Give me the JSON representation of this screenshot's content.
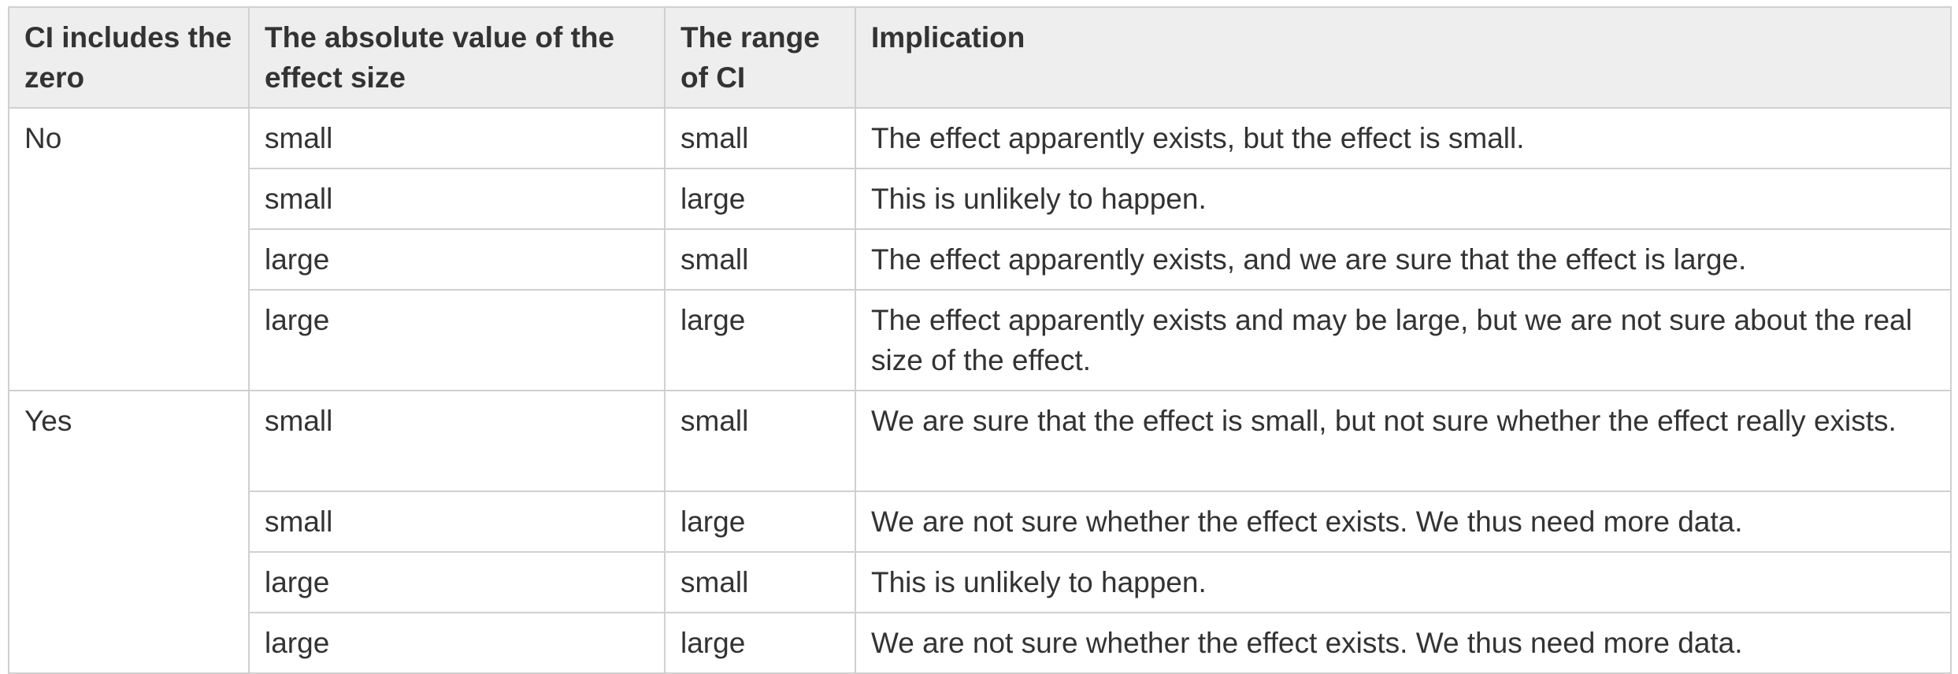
{
  "table": {
    "headers": [
      "CI includes the zero",
      "The absolute value of the effect size",
      "The range of CI",
      "Implication"
    ],
    "groups": [
      {
        "ci_includes_zero": "No",
        "rows": [
          {
            "effect_size": "small",
            "ci_range": "small",
            "implication": "The effect apparently exists, but the effect is small.",
            "implication_bold": true
          },
          {
            "effect_size": "small",
            "ci_range": "large",
            "implication": "This is unlikely to happen.",
            "implication_bold": false
          },
          {
            "effect_size": "large",
            "ci_range": "small",
            "implication": "The effect apparently exists, and we are sure that the effect is large.",
            "implication_bold": true
          },
          {
            "effect_size": "large",
            "ci_range": "large",
            "implication": "The effect apparently exists and may be large, but we are not sure about the real size of the effect.",
            "implication_bold": true
          }
        ]
      },
      {
        "ci_includes_zero": "Yes",
        "rows": [
          {
            "effect_size": "small",
            "ci_range": "small",
            "implication": "We are sure that the effect is small, but not sure whether the effect really exists.",
            "implication_bold": true
          },
          {
            "effect_size": "small",
            "ci_range": "large",
            "implication": "We are not sure whether the effect exists. We thus need more data.",
            "implication_bold": true
          },
          {
            "effect_size": "large",
            "ci_range": "small",
            "implication": "This is unlikely to happen.",
            "implication_bold": false
          },
          {
            "effect_size": "large",
            "ci_range": "large",
            "implication": "We are not sure whether the effect exists. We thus need more data.",
            "implication_bold": true
          }
        ]
      }
    ]
  }
}
